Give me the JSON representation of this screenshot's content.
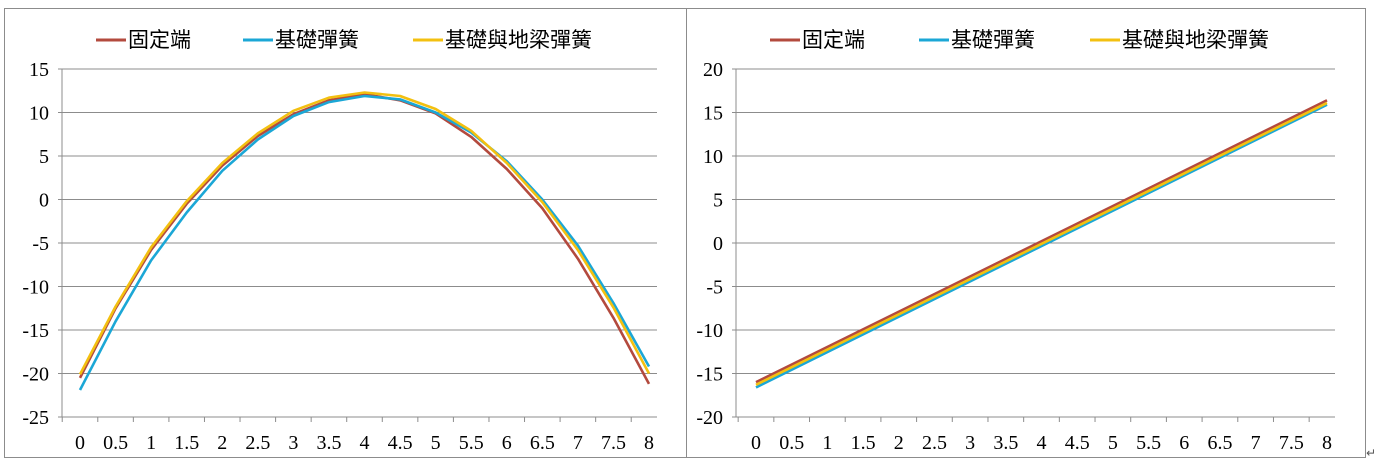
{
  "chart_data": [
    {
      "type": "line",
      "title": "",
      "xlabel": "",
      "ylabel": "",
      "x": [
        0,
        0.5,
        1,
        1.5,
        2,
        2.5,
        3,
        3.5,
        4,
        4.5,
        5,
        5.5,
        6,
        6.5,
        7,
        7.5,
        8
      ],
      "x_tick_labels": [
        "0",
        "0.5",
        "1",
        "1.5",
        "2",
        "2.5",
        "3",
        "3.5",
        "4",
        "4.5",
        "5",
        "5.5",
        "6",
        "6.5",
        "7",
        "7.5",
        "8"
      ],
      "ylim": [
        -25,
        15
      ],
      "y_ticks": [
        15,
        10,
        5,
        0,
        -5,
        -10,
        -15,
        -20,
        -25
      ],
      "y_tick_labels": [
        "15",
        "10",
        "5",
        "0",
        "-5",
        "-10",
        "-15",
        "-20",
        "-25"
      ],
      "grid": true,
      "legend_position": "top",
      "series": [
        {
          "name": "固定端",
          "color": "#b34a3e",
          "values": [
            -20.5,
            -12.5,
            -5.8,
            -0.5,
            3.9,
            7.3,
            9.8,
            11.4,
            12.1,
            11.4,
            9.9,
            7.2,
            3.5,
            -1.0,
            -6.8,
            -13.6,
            -21.2
          ]
        },
        {
          "name": "基礎彈簧",
          "color": "#1ba7d6",
          "values": [
            -21.9,
            -14.0,
            -7.0,
            -1.5,
            3.3,
            6.9,
            9.6,
            11.2,
            11.9,
            11.5,
            10.0,
            7.7,
            4.4,
            0.0,
            -5.3,
            -11.9,
            -19.2
          ]
        },
        {
          "name": "基礎與地梁彈簧",
          "color": "#f3c010",
          "values": [
            -20.1,
            -12.3,
            -5.5,
            -0.2,
            4.2,
            7.6,
            10.2,
            11.7,
            12.3,
            11.9,
            10.4,
            7.9,
            4.2,
            -0.3,
            -5.8,
            -12.4,
            -20.0
          ]
        }
      ]
    },
    {
      "type": "line",
      "title": "",
      "xlabel": "",
      "ylabel": "",
      "x": [
        0,
        8
      ],
      "x_tick_labels": [
        "0",
        "0.5",
        "1",
        "1.5",
        "2",
        "2.5",
        "3",
        "3.5",
        "4",
        "4.5",
        "5",
        "5.5",
        "6",
        "6.5",
        "7",
        "7.5",
        "8"
      ],
      "ylim": [
        -20,
        20
      ],
      "y_ticks": [
        20,
        15,
        10,
        5,
        0,
        -5,
        -10,
        -15,
        -20
      ],
      "y_tick_labels": [
        "20",
        "15",
        "10",
        "5",
        "0",
        "-5",
        "-10",
        "-15",
        "-20"
      ],
      "grid": true,
      "legend_position": "top",
      "series": [
        {
          "name": "固定端",
          "color": "#b34a3e",
          "values": [
            -16.0,
            16.4
          ]
        },
        {
          "name": "基礎彈簧",
          "color": "#1ba7d6",
          "values": [
            -16.6,
            15.9
          ]
        },
        {
          "name": "基礎與地梁彈簧",
          "color": "#f3c010",
          "values": [
            -16.3,
            16.1
          ]
        }
      ]
    }
  ]
}
